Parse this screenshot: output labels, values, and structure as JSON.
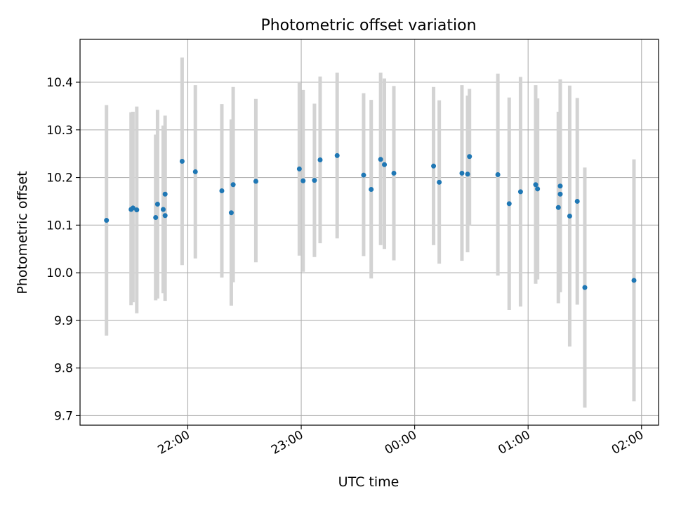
{
  "chart_data": {
    "type": "scatter",
    "title": "Photometric offset variation",
    "xlabel": "UTC time",
    "ylabel": "Photometric offset",
    "x_range": [
      "21:03",
      "02:09"
    ],
    "ylim": [
      9.68,
      10.49
    ],
    "x_ticks": [
      "22:00",
      "23:00",
      "00:00",
      "01:00",
      "02:00"
    ],
    "y_ticks": [
      9.7,
      9.8,
      9.9,
      10.0,
      10.1,
      10.2,
      10.3,
      10.4
    ],
    "grid": true,
    "colors": {
      "point": "#1f77b4",
      "errorbar": "#d3d3d3",
      "grid": "#b0b0b0"
    },
    "series": [
      {
        "points": [
          {
            "x": "21:17",
            "y": 10.11,
            "ylow": 9.868,
            "yhigh": 10.352
          },
          {
            "x": "21:30",
            "y": 10.133,
            "ylow": 9.932,
            "yhigh": 10.337
          },
          {
            "x": "21:31",
            "y": 10.136,
            "ylow": 9.938,
            "yhigh": 10.338
          },
          {
            "x": "21:33",
            "y": 10.132,
            "ylow": 9.915,
            "yhigh": 10.349
          },
          {
            "x": "21:43",
            "y": 10.116,
            "ylow": 9.942,
            "yhigh": 10.29
          },
          {
            "x": "21:44",
            "y": 10.144,
            "ylow": 9.946,
            "yhigh": 10.342
          },
          {
            "x": "21:47",
            "y": 10.133,
            "ylow": 9.957,
            "yhigh": 10.309
          },
          {
            "x": "21:48",
            "y": 10.12,
            "ylow": 9.941,
            "yhigh": 10.299
          },
          {
            "x": "21:48",
            "y": 10.165,
            "ylow": 10.0,
            "yhigh": 10.33
          },
          {
            "x": "21:57",
            "y": 10.234,
            "ylow": 10.016,
            "yhigh": 10.452
          },
          {
            "x": "22:04",
            "y": 10.212,
            "ylow": 10.03,
            "yhigh": 10.394
          },
          {
            "x": "22:18",
            "y": 10.172,
            "ylow": 9.99,
            "yhigh": 10.354
          },
          {
            "x": "22:23",
            "y": 10.126,
            "ylow": 9.931,
            "yhigh": 10.322
          },
          {
            "x": "22:24",
            "y": 10.185,
            "ylow": 9.98,
            "yhigh": 10.39
          },
          {
            "x": "22:36",
            "y": 10.192,
            "ylow": 10.022,
            "yhigh": 10.365
          },
          {
            "x": "22:59",
            "y": 10.218,
            "ylow": 10.036,
            "yhigh": 10.4
          },
          {
            "x": "23:01",
            "y": 10.193,
            "ylow": 10.002,
            "yhigh": 10.384
          },
          {
            "x": "23:07",
            "y": 10.194,
            "ylow": 10.033,
            "yhigh": 10.355
          },
          {
            "x": "23:10",
            "y": 10.237,
            "ylow": 10.062,
            "yhigh": 10.412
          },
          {
            "x": "23:19",
            "y": 10.246,
            "ylow": 10.072,
            "yhigh": 10.42
          },
          {
            "x": "23:33",
            "y": 10.205,
            "ylow": 10.035,
            "yhigh": 10.377
          },
          {
            "x": "23:37",
            "y": 10.175,
            "ylow": 9.988,
            "yhigh": 10.363
          },
          {
            "x": "23:42",
            "y": 10.238,
            "ylow": 10.058,
            "yhigh": 10.42
          },
          {
            "x": "23:44",
            "y": 10.227,
            "ylow": 10.05,
            "yhigh": 10.408
          },
          {
            "x": "23:49",
            "y": 10.209,
            "ylow": 10.026,
            "yhigh": 10.392
          },
          {
            "x": "00:10",
            "y": 10.224,
            "ylow": 10.058,
            "yhigh": 10.39
          },
          {
            "x": "00:13",
            "y": 10.19,
            "ylow": 10.019,
            "yhigh": 10.362
          },
          {
            "x": "00:25",
            "y": 10.209,
            "ylow": 10.025,
            "yhigh": 10.394
          },
          {
            "x": "00:28",
            "y": 10.207,
            "ylow": 10.043,
            "yhigh": 10.372
          },
          {
            "x": "00:29",
            "y": 10.244,
            "ylow": 10.1,
            "yhigh": 10.386
          },
          {
            "x": "00:44",
            "y": 10.206,
            "ylow": 9.994,
            "yhigh": 10.418
          },
          {
            "x": "00:50",
            "y": 10.145,
            "ylow": 9.922,
            "yhigh": 10.368
          },
          {
            "x": "00:56",
            "y": 10.17,
            "ylow": 9.929,
            "yhigh": 10.411
          },
          {
            "x": "01:04",
            "y": 10.185,
            "ylow": 9.977,
            "yhigh": 10.394
          },
          {
            "x": "01:05",
            "y": 10.176,
            "ylow": 9.986,
            "yhigh": 10.366
          },
          {
            "x": "01:16",
            "y": 10.137,
            "ylow": 9.936,
            "yhigh": 10.338
          },
          {
            "x": "01:17",
            "y": 10.165,
            "ylow": 9.962,
            "yhigh": 10.368
          },
          {
            "x": "01:17",
            "y": 10.182,
            "ylow": 9.959,
            "yhigh": 10.406
          },
          {
            "x": "01:22",
            "y": 10.119,
            "ylow": 9.845,
            "yhigh": 10.393
          },
          {
            "x": "01:26",
            "y": 10.15,
            "ylow": 9.933,
            "yhigh": 10.367
          },
          {
            "x": "01:30",
            "y": 9.969,
            "ylow": 9.717,
            "yhigh": 10.221
          },
          {
            "x": "01:56",
            "y": 9.984,
            "ylow": 9.73,
            "yhigh": 10.238
          }
        ]
      }
    ]
  }
}
